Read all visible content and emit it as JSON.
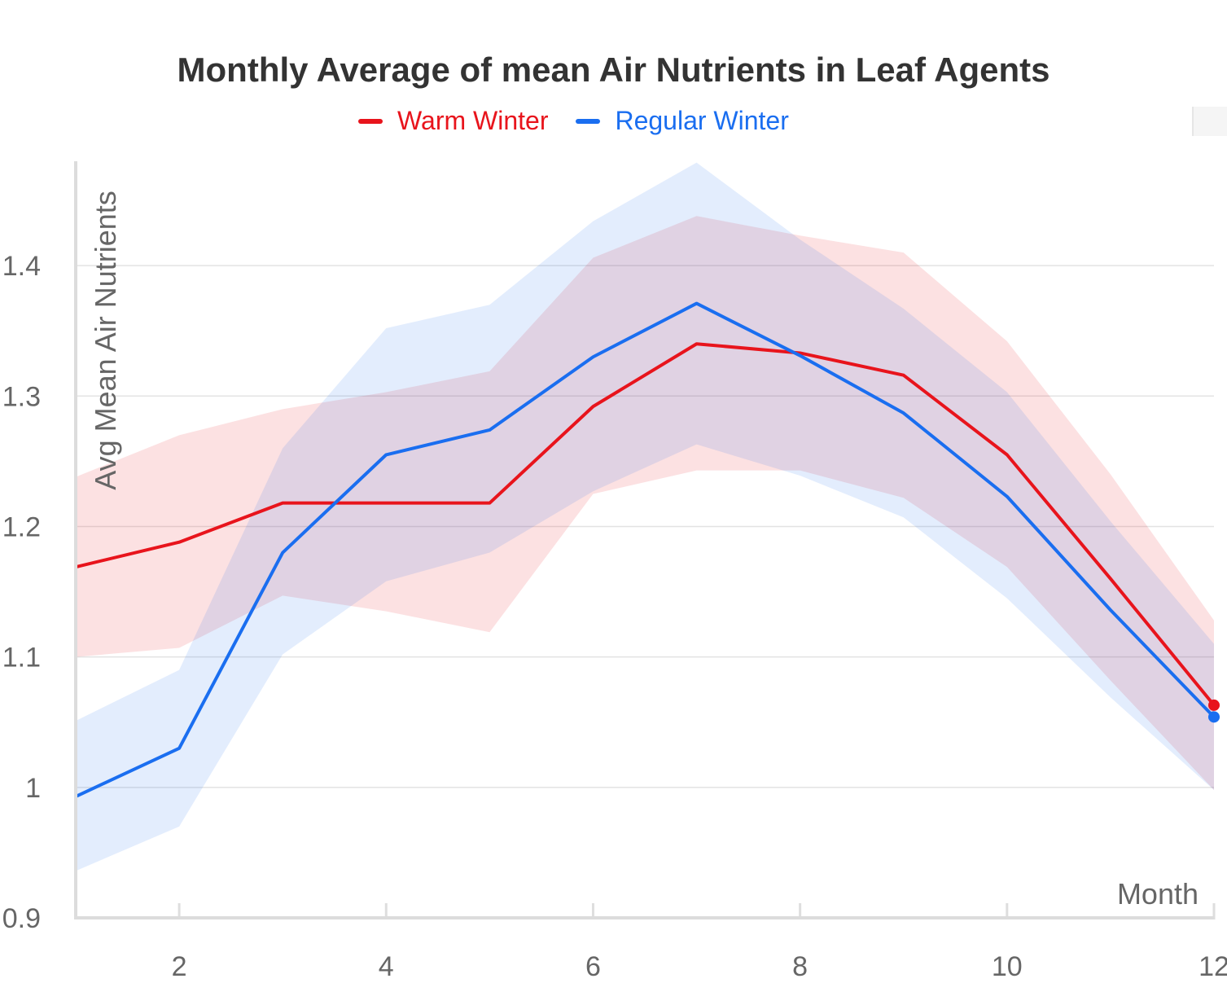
{
  "chart_data": {
    "type": "line",
    "title": "Monthly Average of mean Air Nutrients in Leaf Agents",
    "xlabel": "Month",
    "ylabel": "Avg Mean Air Nutrients",
    "xlim": [
      1,
      12
    ],
    "ylim": [
      0.9,
      1.48
    ],
    "x_ticks": [
      "2",
      "4",
      "6",
      "8",
      "10",
      "12"
    ],
    "y_ticks": [
      "0.9",
      "1",
      "1.1",
      "1.2",
      "1.3",
      "1.4"
    ],
    "grid": true,
    "legend_position": "top-center",
    "x": [
      1,
      2,
      3,
      4,
      5,
      6,
      7,
      8,
      9,
      10,
      11,
      12
    ],
    "series": [
      {
        "name": "Warm Winter",
        "color": "#e8141c",
        "band_color": "#fde0e0",
        "values": [
          1.169,
          1.188,
          1.218,
          1.218,
          1.218,
          1.292,
          1.34,
          1.333,
          1.316,
          1.255,
          1.16,
          1.063
        ],
        "upper": [
          1.238,
          1.27,
          1.29,
          1.303,
          1.319,
          1.406,
          1.438,
          1.423,
          1.41,
          1.342,
          1.24,
          1.128
        ],
        "lower": [
          1.1,
          1.107,
          1.147,
          1.135,
          1.119,
          1.225,
          1.243,
          1.243,
          1.222,
          1.169,
          1.082,
          0.998
        ]
      },
      {
        "name": "Regular Winter",
        "color": "#1a6ef0",
        "band_color": "#dde9fb",
        "values": [
          0.993,
          1.03,
          1.18,
          1.255,
          1.274,
          1.33,
          1.371,
          1.331,
          1.287,
          1.223,
          1.136,
          1.054
        ],
        "upper": [
          1.051,
          1.09,
          1.26,
          1.352,
          1.37,
          1.434,
          1.479,
          1.42,
          1.367,
          1.303,
          1.204,
          1.11
        ],
        "lower": [
          0.936,
          0.97,
          1.102,
          1.158,
          1.18,
          1.227,
          1.263,
          1.239,
          1.207,
          1.145,
          1.069,
          0.998
        ]
      }
    ]
  }
}
